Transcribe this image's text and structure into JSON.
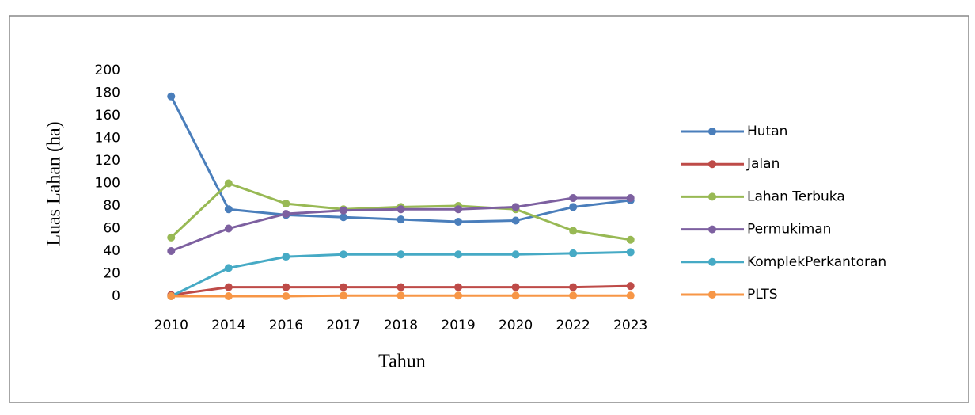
{
  "chart_data": {
    "type": "line",
    "x_label": "Tahun",
    "y_label": "Luas Lahan (ha)",
    "categories": [
      "2010",
      "2014",
      "2016",
      "2017",
      "2018",
      "2019",
      "2020",
      "2022",
      "2023"
    ],
    "series": [
      {
        "name": "Hutan",
        "color": "#4a7ebb",
        "values": [
          177,
          77,
          72,
          70,
          68,
          66,
          67,
          79,
          85
        ]
      },
      {
        "name": "Jalan",
        "color": "#be4b48",
        "values": [
          1,
          8,
          8,
          8,
          8,
          8,
          8,
          8,
          9
        ]
      },
      {
        "name": "Lahan Terbuka",
        "color": "#98b954",
        "values": [
          52,
          100,
          82,
          77,
          79,
          80,
          77,
          58,
          50
        ]
      },
      {
        "name": "Permukiman",
        "color": "#7d60a0",
        "values": [
          40,
          60,
          73,
          76,
          77,
          77,
          79,
          87,
          87
        ]
      },
      {
        "name": "KomplekPerkantoran",
        "color": "#46aac5",
        "values": [
          0,
          25,
          35,
          37,
          37,
          37,
          37,
          38,
          39
        ]
      },
      {
        "name": "PLTS",
        "color": "#f79646",
        "values": [
          0,
          0,
          0,
          0.5,
          0.5,
          0.5,
          0.5,
          0.5,
          0.5
        ]
      }
    ],
    "ylim": [
      0,
      200
    ],
    "yticks": [
      0,
      20,
      40,
      60,
      80,
      100,
      120,
      140,
      160,
      180,
      200
    ],
    "grid": false,
    "legend": "right"
  }
}
